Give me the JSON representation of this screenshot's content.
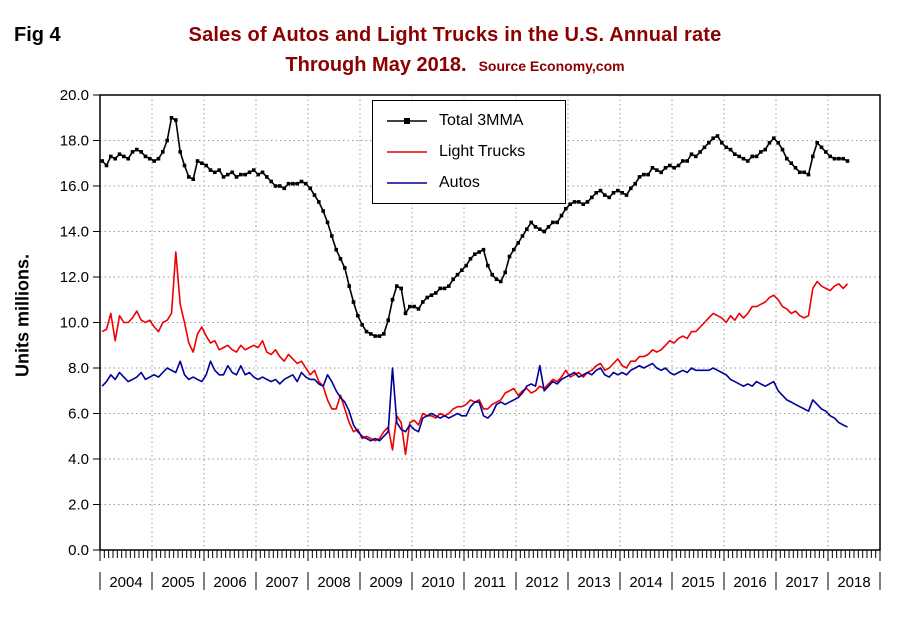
{
  "figure": {
    "label": "Fig 4",
    "title_line1": "Sales of Autos and Light Trucks in the U.S. Annual rate",
    "title_line2": "Through May 2018.",
    "source": "Source Economy,com",
    "title_color": "#8B0000"
  },
  "chart_data": {
    "type": "line",
    "title": "Sales of Autos and Light Trucks in the U.S. Annual rate Through May 2018.",
    "xlabel": "",
    "ylabel": "Units millions.",
    "ylim": [
      0,
      20
    ],
    "ytick_step": 2,
    "ytick_labels": [
      "0.0",
      "2.0",
      "4.0",
      "6.0",
      "8.0",
      "10.0",
      "12.0",
      "14.0",
      "16.0",
      "18.0",
      "20.0"
    ],
    "grid": true,
    "legend_position": "top-center",
    "x_start": "2004-01",
    "x_end": "2018-05",
    "months_domain": 180,
    "year_labels": [
      "2004",
      "2005",
      "2006",
      "2007",
      "2008",
      "2009",
      "2010",
      "2011",
      "2012",
      "2013",
      "2014",
      "2015",
      "2016",
      "2017",
      "2018"
    ],
    "series": [
      {
        "name": "Total 3MMA",
        "color": "#000000",
        "marker": "square",
        "values": [
          17.1,
          16.9,
          17.3,
          17.2,
          17.4,
          17.3,
          17.2,
          17.5,
          17.6,
          17.5,
          17.3,
          17.2,
          17.1,
          17.2,
          17.5,
          18.0,
          19.0,
          18.9,
          17.5,
          16.9,
          16.4,
          16.3,
          17.1,
          17.0,
          16.9,
          16.7,
          16.6,
          16.7,
          16.4,
          16.5,
          16.6,
          16.4,
          16.5,
          16.5,
          16.6,
          16.7,
          16.5,
          16.6,
          16.4,
          16.2,
          16.0,
          16.0,
          15.9,
          16.1,
          16.1,
          16.1,
          16.2,
          16.1,
          15.9,
          15.6,
          15.3,
          14.9,
          14.4,
          13.8,
          13.2,
          12.8,
          12.4,
          11.6,
          10.9,
          10.3,
          9.9,
          9.6,
          9.5,
          9.4,
          9.4,
          9.5,
          10.1,
          11.0,
          11.6,
          11.5,
          10.4,
          10.7,
          10.7,
          10.6,
          10.9,
          11.1,
          11.2,
          11.3,
          11.5,
          11.5,
          11.6,
          11.9,
          12.1,
          12.3,
          12.5,
          12.8,
          13.0,
          13.1,
          13.2,
          12.5,
          12.1,
          11.9,
          11.8,
          12.2,
          12.9,
          13.2,
          13.5,
          13.8,
          14.1,
          14.4,
          14.2,
          14.1,
          14.0,
          14.2,
          14.4,
          14.4,
          14.7,
          15.0,
          15.2,
          15.3,
          15.3,
          15.2,
          15.3,
          15.5,
          15.7,
          15.8,
          15.6,
          15.5,
          15.7,
          15.8,
          15.7,
          15.6,
          15.9,
          16.1,
          16.4,
          16.5,
          16.5,
          16.8,
          16.7,
          16.6,
          16.8,
          16.9,
          16.8,
          16.9,
          17.1,
          17.1,
          17.4,
          17.3,
          17.5,
          17.7,
          17.9,
          18.1,
          18.2,
          17.9,
          17.7,
          17.6,
          17.4,
          17.3,
          17.2,
          17.1,
          17.3,
          17.3,
          17.5,
          17.6,
          17.9,
          18.1,
          17.9,
          17.6,
          17.2,
          17.0,
          16.8,
          16.6,
          16.6,
          16.5,
          17.3,
          17.9,
          17.7,
          17.5,
          17.3,
          17.2,
          17.2,
          17.2,
          17.1
        ]
      },
      {
        "name": "Light Trucks",
        "color": "#ee0000",
        "marker": "none",
        "values": [
          9.6,
          9.7,
          10.4,
          9.2,
          10.3,
          10.0,
          10.0,
          10.2,
          10.5,
          10.1,
          10.0,
          10.1,
          9.8,
          9.6,
          10.0,
          10.1,
          10.4,
          13.1,
          10.8,
          10.0,
          9.1,
          8.7,
          9.5,
          9.8,
          9.4,
          9.1,
          9.2,
          8.8,
          8.9,
          9.0,
          8.8,
          8.7,
          9.0,
          8.8,
          8.9,
          9.0,
          8.9,
          9.2,
          8.7,
          8.6,
          8.8,
          8.5,
          8.3,
          8.6,
          8.4,
          8.2,
          8.3,
          8.0,
          7.7,
          7.9,
          7.4,
          7.2,
          6.6,
          6.2,
          6.2,
          6.8,
          6.2,
          5.6,
          5.2,
          5.3,
          4.9,
          5.0,
          4.9,
          4.8,
          4.9,
          5.2,
          5.4,
          4.4,
          5.9,
          5.6,
          4.2,
          5.6,
          5.7,
          5.5,
          6.0,
          5.9,
          5.9,
          5.8,
          6.0,
          5.9,
          6.0,
          6.2,
          6.3,
          6.3,
          6.4,
          6.6,
          6.5,
          6.6,
          6.2,
          6.2,
          6.4,
          6.5,
          6.6,
          6.9,
          7.0,
          7.1,
          6.8,
          7.0,
          7.1,
          6.9,
          7.0,
          7.2,
          7.1,
          7.3,
          7.5,
          7.4,
          7.6,
          7.9,
          7.6,
          7.7,
          7.8,
          7.6,
          7.8,
          7.9,
          8.1,
          8.2,
          7.9,
          8.0,
          8.2,
          8.4,
          8.1,
          8.0,
          8.3,
          8.3,
          8.5,
          8.5,
          8.6,
          8.8,
          8.7,
          8.8,
          9.0,
          9.2,
          9.1,
          9.3,
          9.4,
          9.3,
          9.6,
          9.6,
          9.8,
          10.0,
          10.2,
          10.4,
          10.3,
          10.2,
          10.0,
          10.3,
          10.1,
          10.4,
          10.2,
          10.4,
          10.7,
          10.7,
          10.8,
          10.9,
          11.1,
          11.2,
          11.0,
          10.7,
          10.6,
          10.4,
          10.5,
          10.3,
          10.2,
          10.3,
          11.5,
          11.8,
          11.6,
          11.5,
          11.4,
          11.6,
          11.7,
          11.5,
          11.7
        ]
      },
      {
        "name": "Autos",
        "color": "#000099",
        "marker": "none",
        "values": [
          7.2,
          7.4,
          7.7,
          7.5,
          7.8,
          7.6,
          7.4,
          7.5,
          7.6,
          7.8,
          7.5,
          7.6,
          7.7,
          7.6,
          7.8,
          8.0,
          7.9,
          7.8,
          8.3,
          7.7,
          7.5,
          7.6,
          7.5,
          7.4,
          7.7,
          8.3,
          7.9,
          7.7,
          7.7,
          8.1,
          7.8,
          7.7,
          8.1,
          7.7,
          7.8,
          7.6,
          7.5,
          7.6,
          7.5,
          7.4,
          7.5,
          7.3,
          7.5,
          7.6,
          7.7,
          7.4,
          7.8,
          7.6,
          7.5,
          7.5,
          7.3,
          7.2,
          7.7,
          7.4,
          7.0,
          6.7,
          6.5,
          6.1,
          5.5,
          5.2,
          5.0,
          4.9,
          4.8,
          4.9,
          4.8,
          5.0,
          5.2,
          8.0,
          5.6,
          5.3,
          5.2,
          5.5,
          5.3,
          5.2,
          5.8,
          5.9,
          6.0,
          5.9,
          5.8,
          5.9,
          5.8,
          5.9,
          6.0,
          5.9,
          5.9,
          6.3,
          6.5,
          6.5,
          5.9,
          5.8,
          6.0,
          6.4,
          6.5,
          6.4,
          6.5,
          6.6,
          6.7,
          6.9,
          7.2,
          7.3,
          7.2,
          8.1,
          7.0,
          7.2,
          7.4,
          7.3,
          7.5,
          7.6,
          7.7,
          7.8,
          7.6,
          7.7,
          7.8,
          7.7,
          7.9,
          8.0,
          7.7,
          7.6,
          7.8,
          7.7,
          7.8,
          7.7,
          7.9,
          8.0,
          8.1,
          8.0,
          8.1,
          8.2,
          8.0,
          7.9,
          8.0,
          7.8,
          7.7,
          7.8,
          7.9,
          7.8,
          8.0,
          7.9,
          7.9,
          7.9,
          7.9,
          8.0,
          7.9,
          7.8,
          7.7,
          7.5,
          7.4,
          7.3,
          7.2,
          7.3,
          7.2,
          7.4,
          7.3,
          7.2,
          7.3,
          7.4,
          7.0,
          6.8,
          6.6,
          6.5,
          6.4,
          6.3,
          6.2,
          6.1,
          6.6,
          6.4,
          6.2,
          6.1,
          5.9,
          5.8,
          5.6,
          5.5,
          5.4
        ]
      }
    ]
  }
}
